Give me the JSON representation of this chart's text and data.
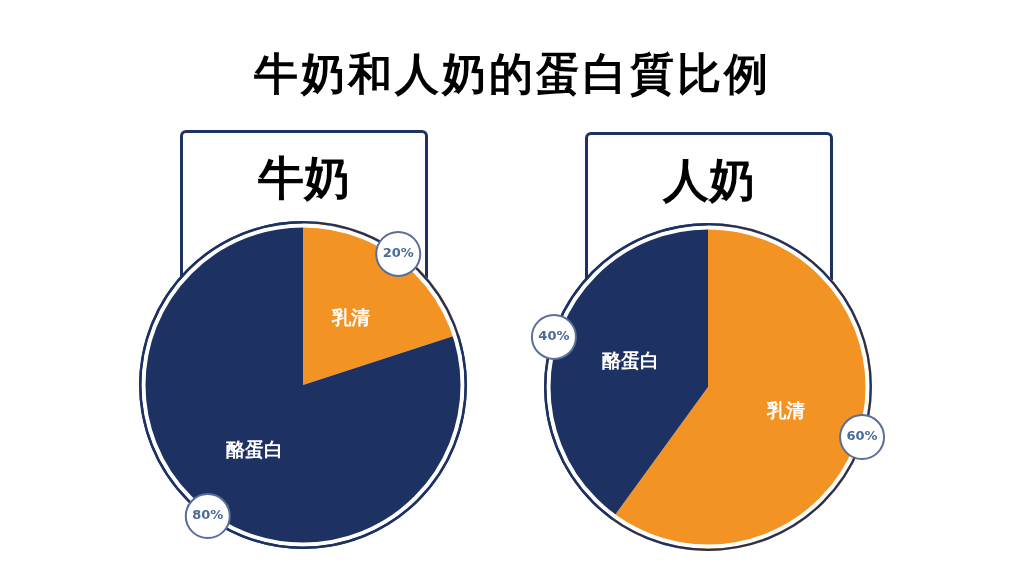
{
  "chart_data": [
    {
      "type": "pie",
      "title": "牛奶和人奶的蛋白質比例",
      "subtitle": "牛奶",
      "categories": [
        "乳清",
        "酪蛋白"
      ],
      "values": [
        20,
        80
      ],
      "colors": [
        "#f39323",
        "#1d3163"
      ],
      "value_labels": [
        "20%",
        "80%"
      ]
    },
    {
      "type": "pie",
      "subtitle": "人奶",
      "categories": [
        "乳清",
        "酪蛋白"
      ],
      "values": [
        60,
        40
      ],
      "colors": [
        "#f39323",
        "#1d3163"
      ],
      "value_labels": [
        "60%",
        "40%"
      ]
    }
  ]
}
